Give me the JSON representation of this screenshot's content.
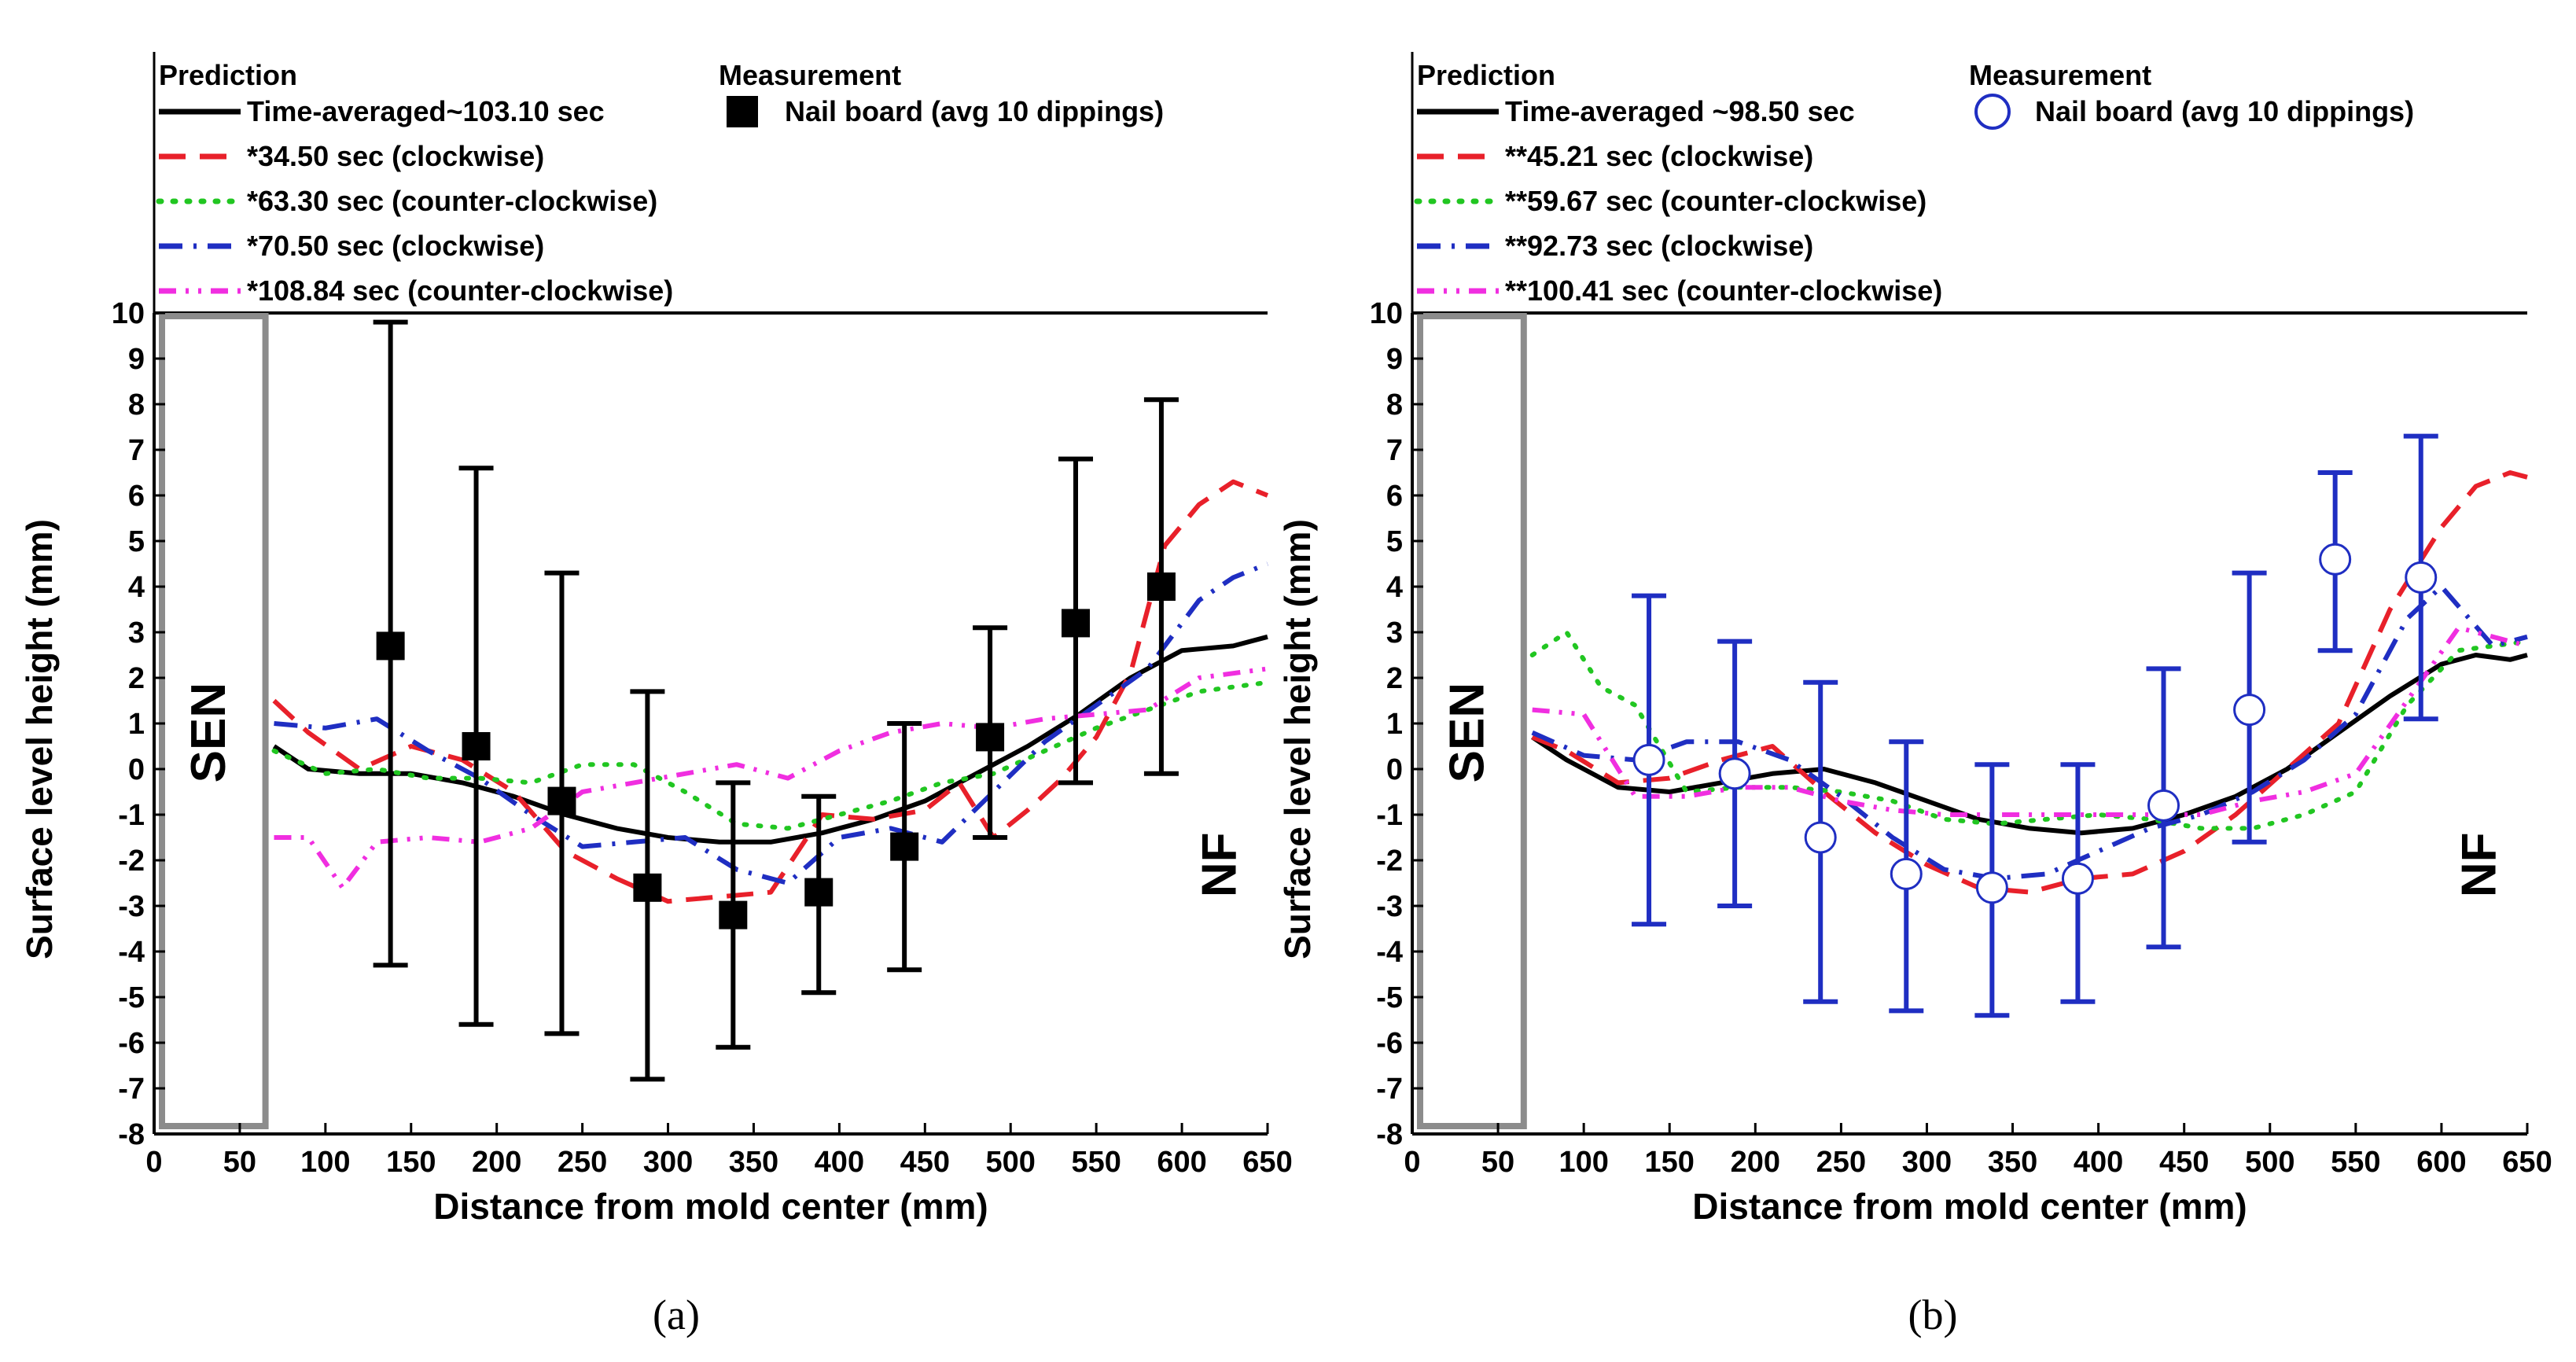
{
  "chart_data": [
    {
      "type": "line",
      "caption": "(a)",
      "xlabel": "Distance from mold center (mm)",
      "ylabel": "Surface level height (mm)",
      "xlim": [
        0,
        650
      ],
      "ylim": [
        -8,
        10
      ],
      "xticks": [
        0,
        50,
        100,
        150,
        200,
        250,
        300,
        350,
        400,
        450,
        500,
        550,
        600,
        650
      ],
      "yticks": [
        -8,
        -7,
        -6,
        -5,
        -4,
        -3,
        -2,
        -1,
        0,
        1,
        2,
        3,
        4,
        5,
        6,
        7,
        8,
        9,
        10
      ],
      "grid": false,
      "legend_prediction_title": "Prediction",
      "legend_measurement_title": "Measurement",
      "region_labels": {
        "left": "SEN",
        "right": "NF"
      },
      "sen_box": {
        "x_range": [
          0,
          65
        ],
        "y_range": [
          -8,
          10
        ]
      },
      "series": [
        {
          "name": "Time-averaged~103.10 sec",
          "color": "#000000",
          "style": "solid",
          "x": [
            70,
            90,
            120,
            150,
            180,
            210,
            240,
            270,
            300,
            330,
            360,
            390,
            420,
            450,
            480,
            510,
            540,
            570,
            600,
            630,
            650
          ],
          "y": [
            0.5,
            0.0,
            -0.1,
            -0.1,
            -0.3,
            -0.6,
            -1.0,
            -1.3,
            -1.5,
            -1.6,
            -1.6,
            -1.4,
            -1.1,
            -0.7,
            -0.1,
            0.5,
            1.2,
            2.0,
            2.6,
            2.7,
            2.9
          ]
        },
        {
          "name": "*34.50 sec (clockwise)",
          "color": "#e8202a",
          "style": "dash",
          "x": [
            70,
            90,
            120,
            150,
            180,
            210,
            240,
            270,
            300,
            330,
            360,
            390,
            420,
            450,
            470,
            490,
            510,
            530,
            550,
            570,
            590,
            610,
            630,
            650
          ],
          "y": [
            1.5,
            0.8,
            0.0,
            0.5,
            0.2,
            -0.5,
            -1.8,
            -2.4,
            -2.9,
            -2.8,
            -2.7,
            -1.0,
            -1.1,
            -0.9,
            -0.3,
            -1.5,
            -0.9,
            -0.2,
            0.7,
            2.1,
            4.9,
            5.8,
            6.3,
            6.0
          ]
        },
        {
          "name": "*63.30 sec (counter-clockwise)",
          "color": "#21c621",
          "style": "dot",
          "x": [
            70,
            100,
            130,
            160,
            190,
            220,
            250,
            280,
            310,
            340,
            370,
            400,
            430,
            460,
            490,
            520,
            550,
            580,
            610,
            650
          ],
          "y": [
            0.4,
            -0.1,
            0.0,
            -0.2,
            -0.2,
            -0.3,
            0.1,
            0.1,
            -0.5,
            -1.2,
            -1.3,
            -1.0,
            -0.7,
            -0.3,
            -0.1,
            0.4,
            0.9,
            1.3,
            1.7,
            1.9
          ]
        },
        {
          "name": "*70.50 sec (clockwise)",
          "color": "#1f2ec2",
          "style": "dashdot",
          "x": [
            70,
            100,
            130,
            160,
            190,
            220,
            250,
            280,
            310,
            340,
            370,
            400,
            430,
            460,
            490,
            520,
            550,
            580,
            610,
            630,
            650
          ],
          "y": [
            1.0,
            0.9,
            1.1,
            0.4,
            -0.2,
            -1.0,
            -1.7,
            -1.6,
            -1.5,
            -2.2,
            -2.5,
            -1.5,
            -1.3,
            -1.6,
            -0.5,
            0.6,
            1.4,
            2.2,
            3.7,
            4.2,
            4.5
          ]
        },
        {
          "name": "*108.84 sec (counter-clockwise)",
          "color": "#f02ee0",
          "style": "dashdotdot",
          "x": [
            70,
            90,
            110,
            130,
            160,
            190,
            220,
            250,
            280,
            310,
            340,
            370,
            400,
            430,
            460,
            490,
            520,
            550,
            580,
            610,
            650
          ],
          "y": [
            -1.5,
            -1.5,
            -2.6,
            -1.6,
            -1.5,
            -1.6,
            -1.3,
            -0.5,
            -0.3,
            -0.1,
            0.1,
            -0.2,
            0.4,
            0.8,
            1.0,
            0.9,
            1.1,
            1.2,
            1.3,
            2.0,
            2.2
          ]
        }
      ],
      "measurement": {
        "name": "Nail board (avg 10 dippings)",
        "marker": "square-filled",
        "color": "#000000",
        "x": [
          138,
          188,
          238,
          288,
          338,
          388,
          438,
          488,
          538,
          588
        ],
        "y": [
          2.7,
          0.5,
          -0.7,
          -2.6,
          -3.2,
          -2.7,
          -1.7,
          0.7,
          3.2,
          4.0
        ],
        "err_low": [
          -4.3,
          -5.6,
          -5.8,
          -6.8,
          -6.1,
          -4.9,
          -4.4,
          -1.5,
          -0.3,
          -0.1
        ],
        "err_high": [
          9.8,
          6.6,
          4.3,
          1.7,
          -0.3,
          -0.6,
          1.0,
          3.1,
          6.8,
          8.1
        ]
      }
    },
    {
      "type": "line",
      "caption": "(b)",
      "xlabel": "Distance from mold center (mm)",
      "ylabel": "Surface level height (mm)",
      "xlim": [
        0,
        650
      ],
      "ylim": [
        -8,
        10
      ],
      "xticks": [
        0,
        50,
        100,
        150,
        200,
        250,
        300,
        350,
        400,
        450,
        500,
        550,
        600,
        650
      ],
      "yticks": [
        -8,
        -7,
        -6,
        -5,
        -4,
        -3,
        -2,
        -1,
        0,
        1,
        2,
        3,
        4,
        5,
        6,
        7,
        8,
        9,
        10
      ],
      "grid": false,
      "legend_prediction_title": "Prediction",
      "legend_measurement_title": "Measurement",
      "region_labels": {
        "left": "SEN",
        "right": "NF"
      },
      "sen_box": {
        "x_range": [
          0,
          65
        ],
        "y_range": [
          -8,
          10
        ]
      },
      "series": [
        {
          "name": "Time-averaged ~98.50 sec",
          "color": "#000000",
          "style": "solid",
          "x": [
            70,
            90,
            120,
            150,
            180,
            210,
            240,
            270,
            300,
            330,
            360,
            390,
            420,
            450,
            480,
            510,
            540,
            570,
            600,
            620,
            640,
            650
          ],
          "y": [
            0.7,
            0.2,
            -0.4,
            -0.5,
            -0.3,
            -0.1,
            0.0,
            -0.3,
            -0.7,
            -1.1,
            -1.3,
            -1.4,
            -1.3,
            -1.0,
            -0.6,
            0.0,
            0.8,
            1.6,
            2.3,
            2.5,
            2.4,
            2.5
          ]
        },
        {
          "name": "**45.21 sec (clockwise)",
          "color": "#e8202a",
          "style": "dash",
          "x": [
            70,
            90,
            120,
            150,
            180,
            210,
            240,
            270,
            300,
            330,
            360,
            390,
            420,
            450,
            480,
            510,
            540,
            570,
            600,
            620,
            640,
            650
          ],
          "y": [
            0.7,
            0.4,
            -0.3,
            -0.2,
            0.2,
            0.5,
            -0.5,
            -1.4,
            -2.1,
            -2.6,
            -2.7,
            -2.4,
            -2.3,
            -1.8,
            -1.0,
            0.0,
            1.0,
            3.5,
            5.3,
            6.2,
            6.5,
            6.4
          ]
        },
        {
          "name": "**59.67 sec (counter-clockwise)",
          "color": "#21c621",
          "style": "dot",
          "x": [
            70,
            90,
            110,
            130,
            160,
            190,
            220,
            250,
            280,
            310,
            340,
            370,
            400,
            430,
            460,
            490,
            520,
            550,
            580,
            610,
            650
          ],
          "y": [
            2.5,
            3.0,
            1.8,
            1.4,
            -0.5,
            -0.4,
            -0.4,
            -0.5,
            -0.7,
            -1.1,
            -1.2,
            -1.1,
            -1.0,
            -1.1,
            -1.3,
            -1.3,
            -1.0,
            -0.5,
            1.4,
            2.6,
            2.8
          ]
        },
        {
          "name": "**92.73 sec (clockwise)",
          "color": "#1f2ec2",
          "style": "dashdot",
          "x": [
            70,
            100,
            130,
            160,
            190,
            220,
            250,
            280,
            310,
            340,
            370,
            400,
            430,
            460,
            490,
            520,
            550,
            580,
            600,
            630,
            650
          ],
          "y": [
            0.8,
            0.3,
            0.2,
            0.6,
            0.6,
            0.2,
            -0.6,
            -1.5,
            -2.2,
            -2.4,
            -2.3,
            -1.8,
            -1.3,
            -1.0,
            -0.5,
            0.2,
            1.2,
            3.3,
            4.0,
            2.7,
            2.9
          ]
        },
        {
          "name": "**100.41 sec (counter-clockwise)",
          "color": "#f02ee0",
          "style": "dashdotdot",
          "x": [
            70,
            100,
            130,
            160,
            190,
            220,
            250,
            280,
            310,
            340,
            370,
            400,
            430,
            460,
            490,
            520,
            550,
            580,
            610,
            650
          ],
          "y": [
            1.3,
            1.2,
            -0.6,
            -0.6,
            -0.4,
            -0.4,
            -0.7,
            -0.9,
            -1.0,
            -1.0,
            -1.0,
            -1.0,
            -1.0,
            -1.0,
            -0.7,
            -0.5,
            -0.1,
            1.5,
            3.1,
            2.7
          ]
        }
      ],
      "measurement": {
        "name": "Nail board (avg 10 dippings)",
        "marker": "circle-open",
        "color": "#1f2ec2",
        "x": [
          138,
          188,
          238,
          288,
          338,
          388,
          438,
          488,
          538,
          588
        ],
        "y": [
          0.2,
          -0.1,
          -1.5,
          -2.3,
          -2.6,
          -2.4,
          -0.8,
          1.3,
          4.6,
          4.2
        ],
        "err_low": [
          -3.4,
          -3.0,
          -5.1,
          -5.3,
          -5.4,
          -5.1,
          -3.9,
          -1.6,
          2.6,
          1.1
        ],
        "err_high": [
          3.8,
          2.8,
          1.9,
          0.6,
          0.1,
          0.1,
          2.2,
          4.3,
          6.5,
          7.3
        ]
      }
    }
  ]
}
